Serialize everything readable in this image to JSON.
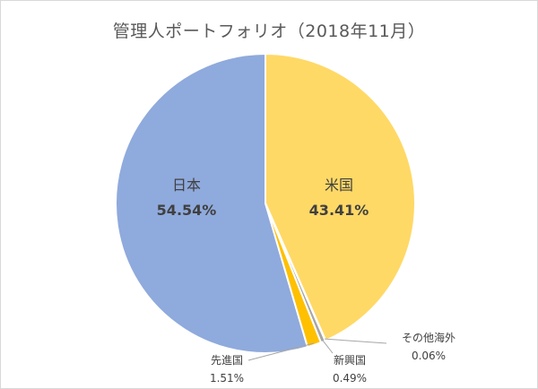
{
  "chart_data": {
    "type": "pie",
    "title": "管理人ポートフォリオ（2018年11月）",
    "slices": [
      {
        "name": "米国",
        "value": 43.41,
        "label": "43.41%",
        "color": "#ffd966"
      },
      {
        "name": "その他海外",
        "value": 0.06,
        "label": "0.06%",
        "color": "#a5a5a5"
      },
      {
        "name": "新興国",
        "value": 0.49,
        "label": "0.49%",
        "color": "#a5a5a5"
      },
      {
        "name": "先進国",
        "value": 1.51,
        "label": "1.51%",
        "color": "#ffc000"
      },
      {
        "name": "日本",
        "value": 54.54,
        "label": "54.54%",
        "color": "#8faadc"
      }
    ],
    "start_angle": "12 o'clock",
    "direction": "clockwise"
  }
}
